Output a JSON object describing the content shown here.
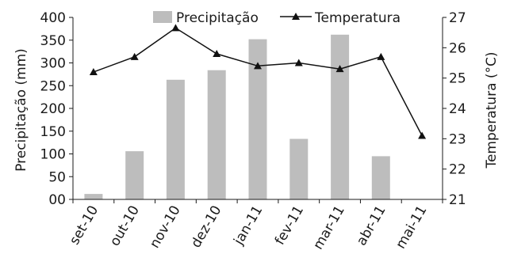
{
  "chart_data": {
    "type": "bar",
    "categories": [
      "set-10",
      "out-10",
      "nov-10",
      "dez-10",
      "jan-11",
      "fev-11",
      "mar-11",
      "abr-11",
      "mai-11"
    ],
    "series": [
      {
        "name": "Precipitação",
        "type": "bar",
        "axis": "left",
        "values": [
          12,
          106,
          263,
          284,
          352,
          133,
          362,
          95,
          0
        ]
      },
      {
        "name": "Temperatura",
        "type": "line",
        "marker": "triangle",
        "axis": "right",
        "values": [
          25.2,
          25.7,
          26.65,
          25.8,
          25.4,
          25.5,
          25.3,
          25.7,
          23.1
        ]
      }
    ],
    "ylabel": "Precipitação (mm)",
    "y2label": "Temperatura (°C)",
    "ylim": [
      0,
      400
    ],
    "y2lim": [
      21,
      27
    ],
    "yticks": [
      "00",
      "50",
      "100",
      "150",
      "200",
      "250",
      "300",
      "350",
      "400"
    ],
    "y2ticks": [
      "21",
      "22",
      "23",
      "24",
      "25",
      "26",
      "27"
    ],
    "grid": false,
    "legend_position": "top-center",
    "colors": {
      "bar": "#bdbdbd",
      "line": "#111111",
      "axis": "#1a1a1a"
    }
  }
}
